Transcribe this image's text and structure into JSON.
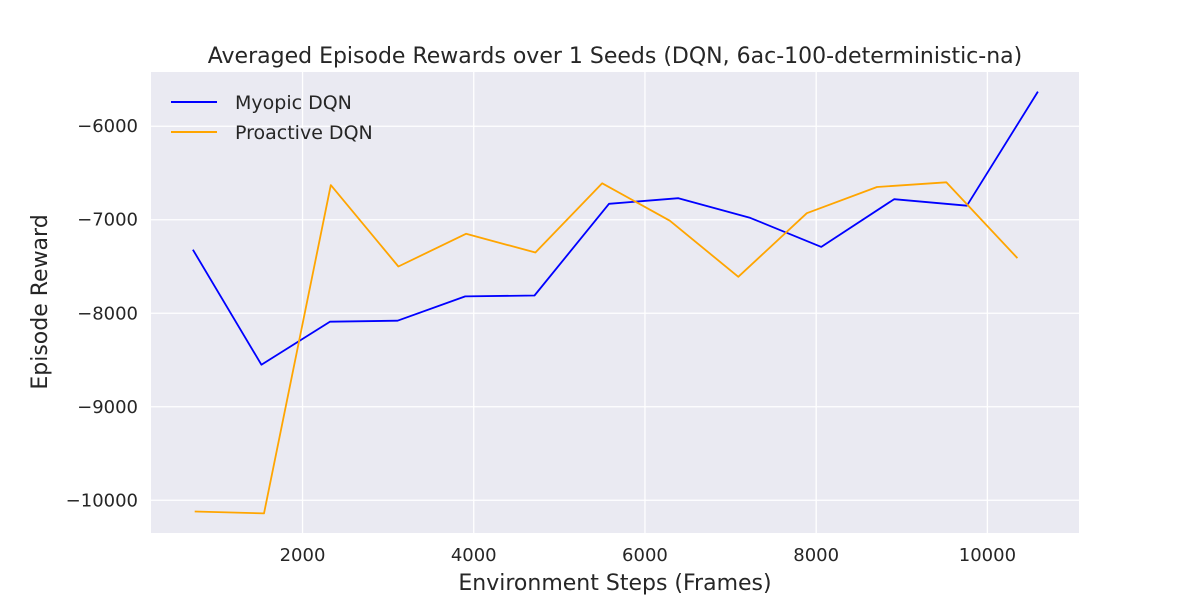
{
  "chart_data": {
    "type": "line",
    "title": "Averaged Episode Rewards over 1 Seeds (DQN, 6ac-100-deterministic-na)",
    "xlabel": "Environment Steps (Frames)",
    "ylabel": "Episode Reward",
    "xlim": [
      230,
      11070
    ],
    "ylim": [
      -10350,
      -5420
    ],
    "xticks": [
      2000,
      4000,
      6000,
      8000,
      10000
    ],
    "xtick_labels": [
      "2000",
      "4000",
      "6000",
      "8000",
      "10000"
    ],
    "yticks": [
      -10000,
      -9000,
      -8000,
      -7000,
      -6000
    ],
    "ytick_labels": [
      "−10000",
      "−9000",
      "−8000",
      "−7000",
      "−6000"
    ],
    "grid": true,
    "legend_position": "top-left",
    "series": [
      {
        "name": "Myopic DQN",
        "color": "#0000ff",
        "x": [
          720,
          1520,
          2320,
          3110,
          3900,
          4710,
          5580,
          6390,
          7230,
          8060,
          8910,
          9760,
          10590
        ],
        "y": [
          -7320,
          -8550,
          -8090,
          -8080,
          -7820,
          -7810,
          -6830,
          -6770,
          -6980,
          -7290,
          -6780,
          -6850,
          -5630
        ]
      },
      {
        "name": "Proactive DQN",
        "color": "#ffa500",
        "x": [
          740,
          1550,
          2330,
          3120,
          3910,
          4720,
          5500,
          6290,
          7090,
          7890,
          8710,
          9520,
          10350
        ],
        "y": [
          -10120,
          -10140,
          -6630,
          -7500,
          -7150,
          -7350,
          -6610,
          -7010,
          -7610,
          -6930,
          -6650,
          -6600,
          -7410
        ]
      }
    ]
  }
}
